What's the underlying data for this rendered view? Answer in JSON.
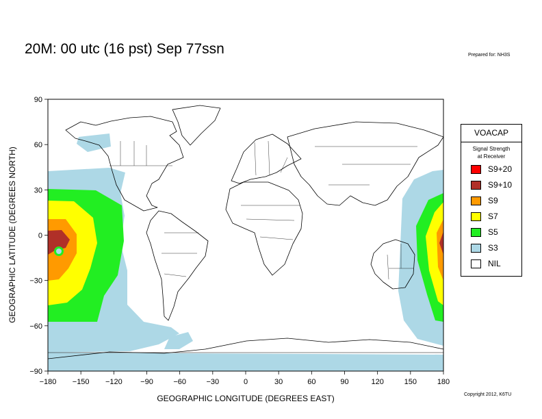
{
  "header": {
    "title": "20M:  00 utc (16 pst) Sep 77ssn",
    "prepared": "Prepared for: NH3S",
    "copyright": "Copyright 2012, K6TU"
  },
  "map": {
    "projection": "equirectangular",
    "x_axis": {
      "label": "GEOGRAPHIC LONGITUDE (DEGREES EAST)",
      "range": [
        -180,
        180
      ],
      "ticks": [
        "−180",
        "−150",
        "−120",
        "−90",
        "−60",
        "−30",
        "0",
        "30",
        "60",
        "90",
        "120",
        "150",
        "180"
      ]
    },
    "y_axis": {
      "label": "GEOGRAPHIC LATITUDE (DEGREES NORTH)",
      "range": [
        -90,
        90
      ],
      "ticks": [
        "−90",
        "−60",
        "−30",
        "0",
        "30",
        "60",
        "90"
      ]
    },
    "coverage_center": {
      "lon": -170,
      "lat": -12
    }
  },
  "legend": {
    "title": "VOACAP",
    "subtitle_line1": "Signal Strength",
    "subtitle_line2": "at Receiver",
    "items": [
      {
        "label": "S9+20",
        "color": "#ff0000"
      },
      {
        "label": "S9+10",
        "color": "#b03028"
      },
      {
        "label": "S9",
        "color": "#ff9a00"
      },
      {
        "label": "S7",
        "color": "#ffff00"
      },
      {
        "label": "S5",
        "color": "#22ee22"
      },
      {
        "label": "S3",
        "color": "#add8e6"
      },
      {
        "label": "NIL",
        "color": "#ffffff"
      }
    ]
  }
}
